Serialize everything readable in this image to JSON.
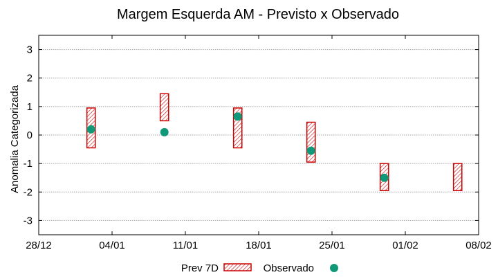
{
  "chart_data": {
    "type": "scatter",
    "title": "Margem Esquerda AM - Previsto x Observado",
    "ylabel": "Anomalia Categorizada",
    "xlabel": "",
    "xlim": [
      0,
      42
    ],
    "ylim": [
      -3.5,
      3.5
    ],
    "x_ticks": [
      {
        "x": 0,
        "label": "28/12"
      },
      {
        "x": 7,
        "label": "04/01"
      },
      {
        "x": 14,
        "label": "11/01"
      },
      {
        "x": 21,
        "label": "18/01"
      },
      {
        "x": 28,
        "label": "25/01"
      },
      {
        "x": 35,
        "label": "01/02"
      },
      {
        "x": 42,
        "label": "08/02"
      }
    ],
    "y_ticks": [
      {
        "y": 3,
        "label": "3"
      },
      {
        "y": 2,
        "label": "2"
      },
      {
        "y": 1,
        "label": "1"
      },
      {
        "y": 0,
        "label": "0"
      },
      {
        "y": -1,
        "label": "-1"
      },
      {
        "y": -2,
        "label": "-2"
      },
      {
        "y": -3,
        "label": "-3"
      }
    ],
    "grid": true,
    "legend_position": "bottom-center",
    "bar_width_days": 0.8,
    "series": [
      {
        "name": "Prev 7D",
        "kind": "range-bar",
        "color": "#cc0000",
        "points": [
          {
            "x": 5,
            "low": -0.45,
            "high": 0.95
          },
          {
            "x": 12,
            "low": 0.5,
            "high": 1.45
          },
          {
            "x": 19,
            "low": -0.45,
            "high": 0.95
          },
          {
            "x": 26,
            "low": -0.95,
            "high": 0.45
          },
          {
            "x": 33,
            "low": -1.95,
            "high": -1.0
          },
          {
            "x": 40,
            "low": -1.95,
            "high": -1.0
          }
        ]
      },
      {
        "name": "Observado",
        "kind": "point",
        "color": "#109978",
        "points": [
          {
            "x": 5,
            "y": 0.2
          },
          {
            "x": 12,
            "y": 0.1
          },
          {
            "x": 19,
            "y": 0.65
          },
          {
            "x": 26,
            "y": -0.55
          },
          {
            "x": 33,
            "y": -1.5
          }
        ]
      }
    ]
  }
}
